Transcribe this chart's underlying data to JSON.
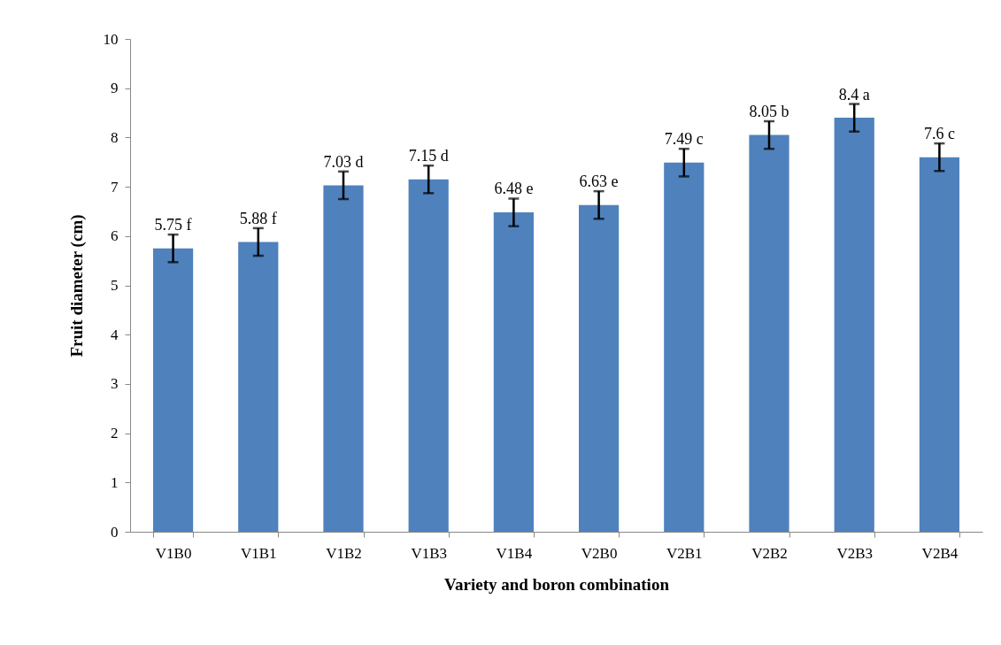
{
  "chart_data": {
    "type": "bar",
    "xlabel": "Variety and boron combination",
    "ylabel": "Fruit diameter (cm)",
    "categories": [
      "V1B0",
      "V1B1",
      "V1B2",
      "V1B3",
      "V1B4",
      "V2B0",
      "V2B1",
      "V2B2",
      "V2B3",
      "V2B4"
    ],
    "values": [
      5.75,
      5.88,
      7.03,
      7.15,
      6.48,
      6.63,
      7.49,
      8.05,
      8.4,
      7.6
    ],
    "errors": [
      0.28,
      0.28,
      0.28,
      0.28,
      0.28,
      0.28,
      0.28,
      0.28,
      0.28,
      0.28
    ],
    "value_labels": [
      "5.75 f",
      "5.88 f",
      "7.03 d",
      "7.15 d",
      "6.48 e",
      "6.63 e",
      "7.49 c",
      "8.05 b",
      "8.4 a",
      "7.6 c"
    ],
    "color": "#4f81bd",
    "ylim": [
      0,
      10
    ],
    "yticks": [
      0,
      1,
      2,
      3,
      4,
      5,
      6,
      7,
      8,
      9,
      10
    ],
    "grid": false
  }
}
